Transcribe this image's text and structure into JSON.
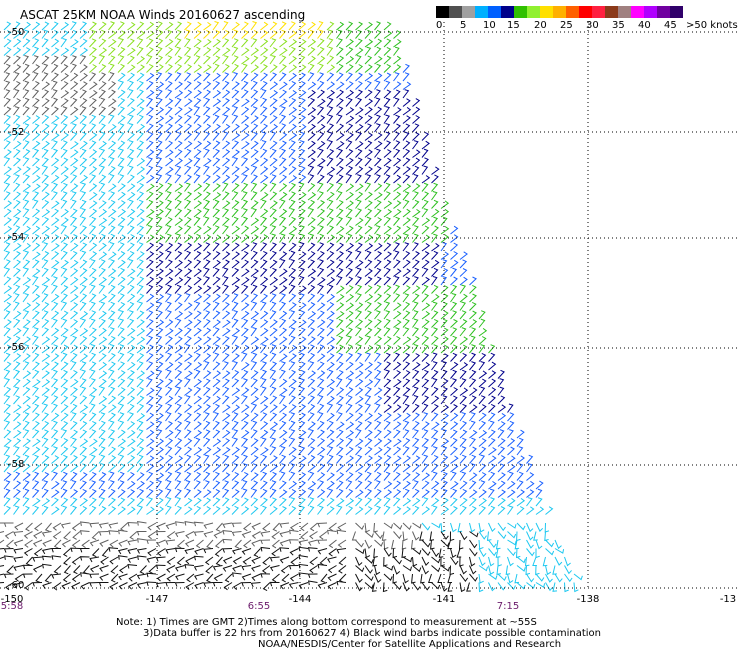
{
  "title": "ASCAT 25KM NOAA Winds 20160627 ascending",
  "legend": {
    "colors": [
      "#000000",
      "#505050",
      "#a0a0a0",
      "#00b0ff",
      "#0060ff",
      "#00008b",
      "#30c000",
      "#90f030",
      "#ffe000",
      "#ffb000",
      "#ff6000",
      "#ff0000",
      "#ff2040",
      "#8b3a1a",
      "#a08080",
      "#ff00ff",
      "#b000ff",
      "#7000a0",
      "#30006a"
    ],
    "labels": [
      "0",
      "5",
      "10",
      "15",
      "20",
      "25",
      "30",
      "35",
      "40",
      "45",
      ">50 knots"
    ]
  },
  "lat_labels": [
    "-50",
    "-52",
    "-54",
    "-56",
    "-58",
    "-60"
  ],
  "lon_labels": [
    "-150",
    "-147",
    "-144",
    "-141",
    "-138",
    "-13"
  ],
  "times": [
    "5:58",
    "6:55",
    "7:15"
  ],
  "notes": [
    "Note: 1) Times are GMT 2)Times along bottom correspond to measurement at ~55S",
    "3)Data buffer is 22 hrs from 20160627 4) Black wind barbs indicate possible contamination",
    "NOAA/NESDIS/Center for Satellite Applications and Research"
  ]
}
